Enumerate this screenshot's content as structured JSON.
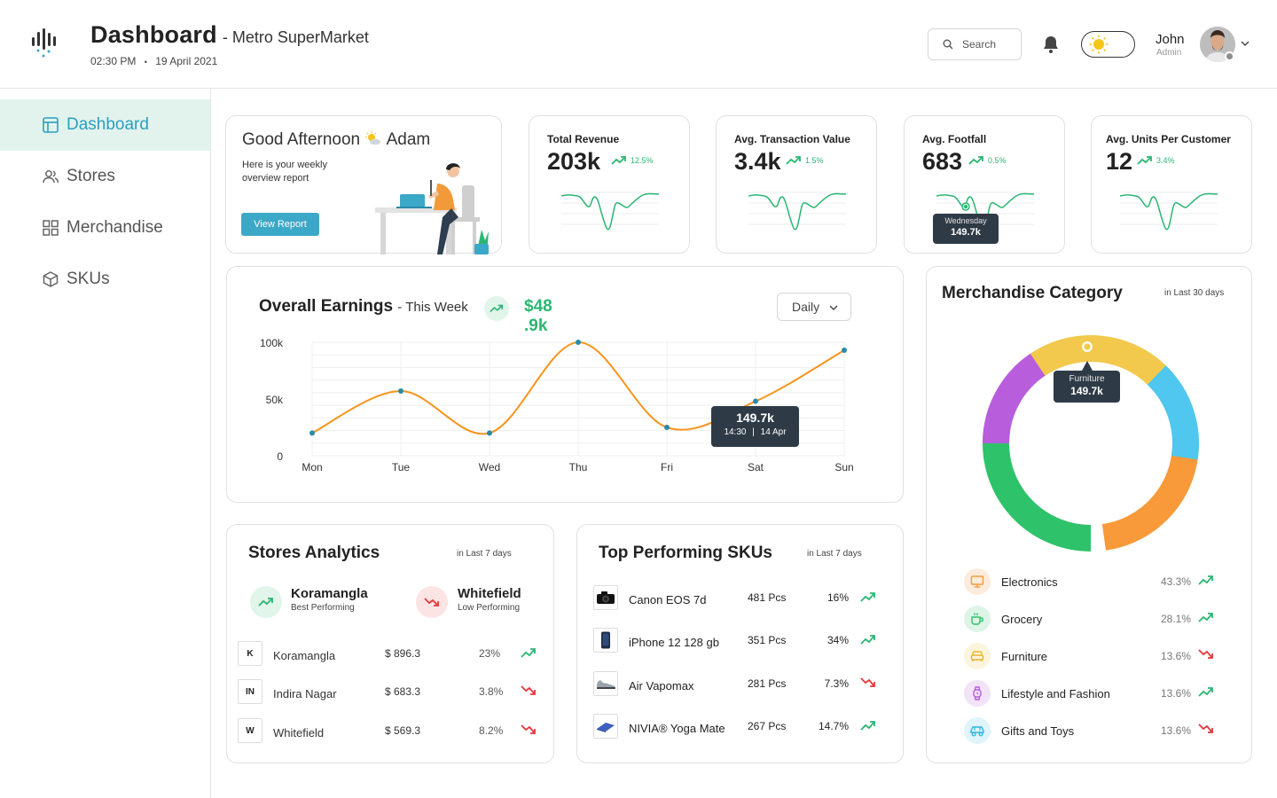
{
  "header": {
    "title": "Dashboard",
    "subtitle": "- Metro SuperMarket",
    "time": "02:30 PM",
    "separator": "•",
    "date": "19 April 2021",
    "search_placeholder": "Search",
    "user_name": "John",
    "user_role": "Admin"
  },
  "sidebar": {
    "items": [
      {
        "label": "Dashboard",
        "icon": "layout-icon",
        "active": true
      },
      {
        "label": "Stores",
        "icon": "users-icon",
        "active": false
      },
      {
        "label": "Merchandise",
        "icon": "grid-icon",
        "active": false
      },
      {
        "label": "SKUs",
        "icon": "box-icon",
        "active": false
      }
    ]
  },
  "greeting": {
    "prefix": "Good Afternoon",
    "name": "Adam",
    "text": "Here is your weekly overview report",
    "button": "View Report"
  },
  "kpis": [
    {
      "label": "Total Revenue",
      "value": "203k",
      "change": "12.5%",
      "trend": "up"
    },
    {
      "label": "Avg. Transaction Value",
      "value": "3.4k",
      "change": "1.5%",
      "trend": "up"
    },
    {
      "label": "Avg. Footfall",
      "value": "683",
      "change": "0.5%",
      "trend": "up",
      "tooltip": {
        "day": "Wednesday",
        "value": "149.7k"
      }
    },
    {
      "label": "Avg. Units Per Customer",
      "value": "12",
      "change": "3.4%",
      "trend": "up"
    }
  ],
  "earnings": {
    "title": "Overall Earnings",
    "subtitle": "- This Week",
    "amount_line1": "$48",
    "amount_line2": ".9k",
    "select": "Daily",
    "tooltip": {
      "value": "149.7k",
      "time": "14:30",
      "date": "14 Apr"
    }
  },
  "chart_data": {
    "type": "line",
    "categories": [
      "Mon",
      "Tue",
      "Wed",
      "Thu",
      "Fri",
      "Sat",
      "Sun"
    ],
    "values": [
      20,
      57,
      20,
      100,
      25,
      48,
      93
    ],
    "ylim": [
      0,
      100
    ],
    "ytick_labels": [
      "100k",
      "50k",
      "0"
    ],
    "yticks": [
      100,
      50,
      0
    ],
    "grid": true,
    "color": "#f7941d"
  },
  "merchandise": {
    "title": "Merchandise Category",
    "period": "in Last 30 days",
    "tooltip": {
      "label": "Furniture",
      "value": "149.7k"
    },
    "categories": [
      {
        "name": "Electronics",
        "pct": "43.3%",
        "trend": "up",
        "icon": "monitor-icon",
        "color": "#f89a3a",
        "bg": "#fdebdc"
      },
      {
        "name": "Grocery",
        "pct": "28.1%",
        "trend": "up",
        "icon": "cup-icon",
        "color": "#2ec26a",
        "bg": "#ddf4e6"
      },
      {
        "name": "Furniture",
        "pct": "13.6%",
        "trend": "down",
        "icon": "sofa-icon",
        "color": "#f2c94c",
        "bg": "#fcf4dc"
      },
      {
        "name": "Lifestyle and Fashion",
        "pct": "13.6%",
        "trend": "up",
        "icon": "watch-icon",
        "color": "#b85ddc",
        "bg": "#f2e3f8"
      },
      {
        "name": "Gifts and Toys",
        "pct": "13.6%",
        "trend": "down",
        "icon": "car-icon",
        "color": "#4fc7ee",
        "bg": "#dff4fb"
      }
    ]
  },
  "stores_analytics": {
    "title": "Stores Analytics",
    "period": "in Last 7 days",
    "best": {
      "name": "Koramangla",
      "label": "Best Performing"
    },
    "low": {
      "name": "Whitefield",
      "label": "Low Performing"
    },
    "rows": [
      {
        "abbr": "K",
        "name": "Koramangla",
        "amount": "$ 896.3",
        "pct": "23%",
        "trend": "up"
      },
      {
        "abbr": "IN",
        "name": "Indira Nagar",
        "amount": "$ 683.3",
        "pct": "3.8%",
        "trend": "down"
      },
      {
        "abbr": "W",
        "name": "Whitefield",
        "amount": "$ 569.3",
        "pct": "8.2%",
        "trend": "down"
      }
    ]
  },
  "top_skus": {
    "title": "Top Performing SKUs",
    "period": "in Last 7 days",
    "rows": [
      {
        "name": "Canon EOS 7d",
        "qty": "481 Pcs",
        "pct": "16%",
        "trend": "up",
        "icon": "camera-icon"
      },
      {
        "name": "iPhone 12 128 gb",
        "qty": "351 Pcs",
        "pct": "34%",
        "trend": "up",
        "icon": "phone-icon"
      },
      {
        "name": "Air Vapomax",
        "qty": "281 Pcs",
        "pct": "7.3%",
        "trend": "down",
        "icon": "shoe-icon"
      },
      {
        "name": "NIVIA® Yoga Mate",
        "qty": "267 Pcs",
        "pct": "14.7%",
        "trend": "up",
        "icon": "mat-icon"
      }
    ]
  },
  "colors": {
    "accent": "#3ba8c7",
    "up": "#2bb673",
    "down": "#e5383b",
    "active_bg": "#e2f3ee"
  }
}
